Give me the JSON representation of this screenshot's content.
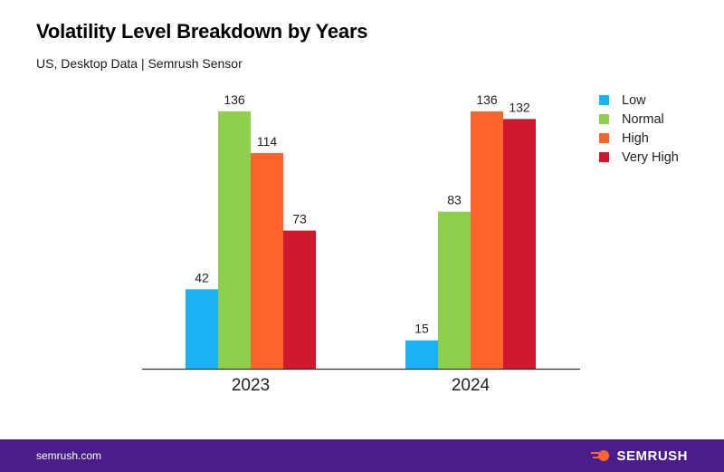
{
  "header": {
    "title": "Volatility Level Breakdown by Years",
    "subtitle": "US, Desktop Data | Semrush Sensor"
  },
  "footer": {
    "site": "semrush.com",
    "brand": "SEMRUSH",
    "background": "#4a1d8a",
    "logo_color": "#ff642d"
  },
  "chart_data": {
    "type": "bar",
    "categories": [
      "2023",
      "2024"
    ],
    "series": [
      {
        "name": "Low",
        "color": "#1ab2f5",
        "values": [
          42,
          15
        ]
      },
      {
        "name": "Normal",
        "color": "#8ed04b",
        "values": [
          136,
          83
        ]
      },
      {
        "name": "High",
        "color": "#ff642d",
        "values": [
          114,
          136
        ]
      },
      {
        "name": "Very High",
        "color": "#d0182e",
        "values": [
          73,
          132
        ]
      }
    ],
    "ylim": [
      0,
      136
    ],
    "grid": false,
    "legend": "top-right"
  }
}
